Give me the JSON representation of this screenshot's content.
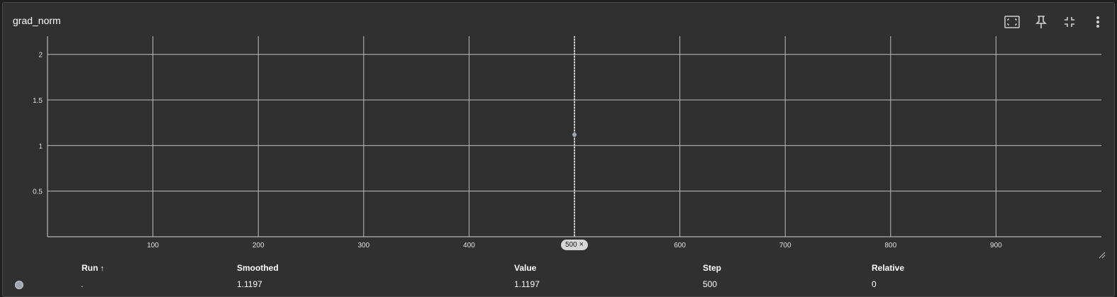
{
  "card": {
    "title": "grad_norm"
  },
  "toolbar": {
    "buttons": [
      {
        "name": "fit-domain-button",
        "icon": "fit-to-data-icon"
      },
      {
        "name": "pin-button",
        "icon": "pin-icon"
      },
      {
        "name": "collapse-button",
        "icon": "collapse-icon"
      },
      {
        "name": "more-options-button",
        "icon": "more-vert-icon"
      }
    ]
  },
  "chart_data": {
    "type": "line",
    "title": "",
    "xlabel": "",
    "ylabel": "",
    "xlim": [
      0,
      1000
    ],
    "ylim": [
      0,
      2.2
    ],
    "x_ticks": [
      100,
      200,
      300,
      400,
      500,
      600,
      700,
      800,
      900
    ],
    "y_ticks": [
      0.5,
      1,
      1.5,
      2
    ],
    "x_tick_labels": [
      "100",
      "200",
      "300",
      "400",
      "500",
      "600",
      "700",
      "800",
      "900"
    ],
    "y_tick_labels": [
      "0.5",
      "1",
      "1.5",
      "2"
    ],
    "grid": true,
    "series": [
      {
        "x": [
          500
        ],
        "y": [
          1.1197
        ],
        "color": "#a0a6b1"
      }
    ],
    "cursor": {
      "step": 500,
      "label": "500",
      "close": "×"
    }
  },
  "table": {
    "headers": {
      "run": "Run",
      "run_sort": "↑",
      "smoothed": "Smoothed",
      "value": "Value",
      "step": "Step",
      "relative": "Relative"
    },
    "rows": [
      {
        "run": ".",
        "smoothed": "1.1197",
        "value": "1.1197",
        "step": "500",
        "relative": "0",
        "color": "#a0a6b1"
      }
    ]
  }
}
